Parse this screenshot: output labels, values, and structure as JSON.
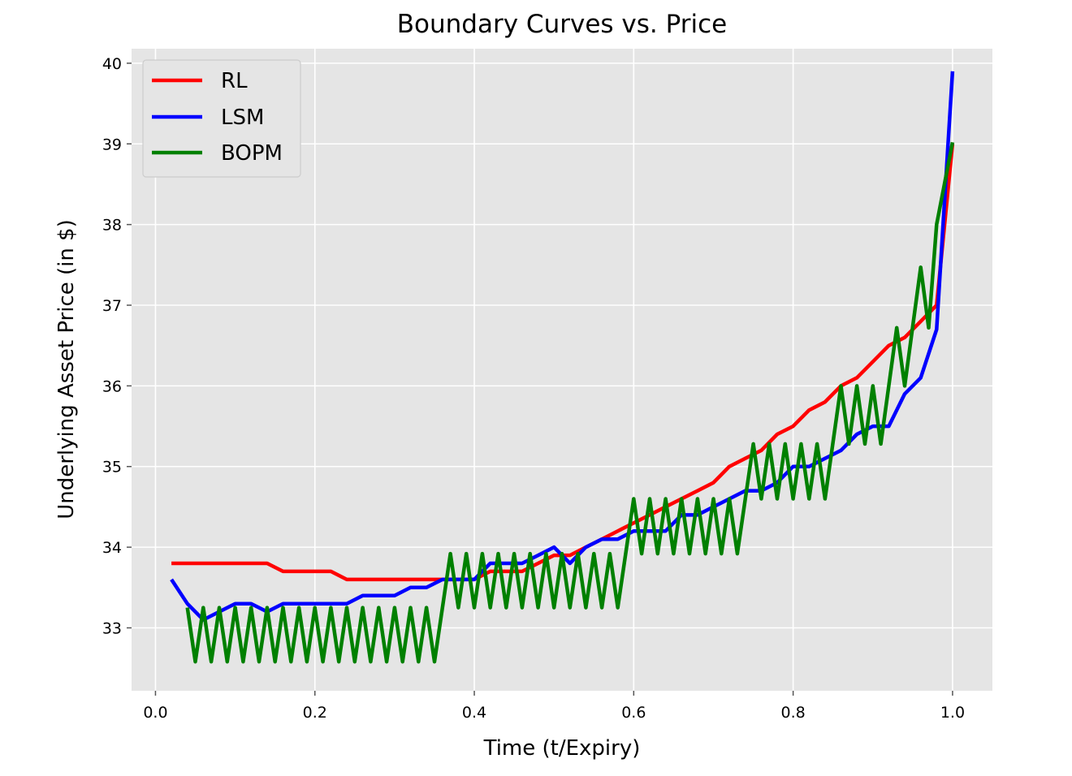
{
  "chart_data": {
    "type": "line",
    "title": "Boundary Curves vs. Price",
    "xlabel": "Time (t/Expiry)",
    "ylabel": "Underlying Asset Price (in $)",
    "xlim": [
      -0.03,
      1.05
    ],
    "ylim": [
      32.22,
      40.18
    ],
    "xticks": [
      0.0,
      0.2,
      0.4,
      0.6,
      0.8,
      1.0
    ],
    "xtick_labels": [
      "0.0",
      "0.2",
      "0.4",
      "0.6",
      "0.8",
      "1.0"
    ],
    "yticks": [
      33,
      34,
      35,
      36,
      37,
      38,
      39,
      40
    ],
    "ytick_labels": [
      "33",
      "34",
      "35",
      "36",
      "37",
      "38",
      "39",
      "40"
    ],
    "grid": true,
    "legend_position": "top-left",
    "series": [
      {
        "name": "RL",
        "color": "#ff0000",
        "x": [
          0.02,
          0.04,
          0.06,
          0.08,
          0.1,
          0.12,
          0.14,
          0.16,
          0.18,
          0.2,
          0.22,
          0.24,
          0.26,
          0.28,
          0.3,
          0.32,
          0.34,
          0.36,
          0.38,
          0.4,
          0.42,
          0.44,
          0.46,
          0.48,
          0.5,
          0.52,
          0.54,
          0.56,
          0.58,
          0.6,
          0.62,
          0.64,
          0.66,
          0.68,
          0.7,
          0.72,
          0.74,
          0.76,
          0.78,
          0.8,
          0.82,
          0.84,
          0.86,
          0.88,
          0.9,
          0.92,
          0.94,
          0.96,
          0.98,
          1.0
        ],
        "y": [
          33.8,
          33.8,
          33.8,
          33.8,
          33.8,
          33.8,
          33.8,
          33.7,
          33.7,
          33.7,
          33.7,
          33.6,
          33.6,
          33.6,
          33.6,
          33.6,
          33.6,
          33.6,
          33.6,
          33.6,
          33.7,
          33.7,
          33.7,
          33.8,
          33.9,
          33.9,
          34.0,
          34.1,
          34.2,
          34.3,
          34.4,
          34.5,
          34.6,
          34.7,
          34.8,
          35.0,
          35.1,
          35.2,
          35.4,
          35.5,
          35.7,
          35.8,
          36.0,
          36.1,
          36.3,
          36.5,
          36.6,
          36.8,
          37.0,
          39.0
        ]
      },
      {
        "name": "LSM",
        "color": "#0000ff",
        "x": [
          0.02,
          0.04,
          0.06,
          0.08,
          0.1,
          0.12,
          0.14,
          0.16,
          0.18,
          0.2,
          0.22,
          0.24,
          0.26,
          0.28,
          0.3,
          0.32,
          0.34,
          0.36,
          0.38,
          0.4,
          0.42,
          0.44,
          0.46,
          0.48,
          0.5,
          0.52,
          0.54,
          0.56,
          0.58,
          0.6,
          0.62,
          0.64,
          0.66,
          0.68,
          0.7,
          0.72,
          0.74,
          0.76,
          0.78,
          0.8,
          0.82,
          0.84,
          0.86,
          0.88,
          0.9,
          0.92,
          0.94,
          0.96,
          0.98,
          1.0
        ],
        "y": [
          33.6,
          33.3,
          33.1,
          33.2,
          33.3,
          33.3,
          33.2,
          33.3,
          33.3,
          33.3,
          33.3,
          33.3,
          33.4,
          33.4,
          33.4,
          33.5,
          33.5,
          33.6,
          33.6,
          33.6,
          33.8,
          33.8,
          33.8,
          33.9,
          34.0,
          33.8,
          34.0,
          34.1,
          34.1,
          34.2,
          34.2,
          34.2,
          34.4,
          34.4,
          34.5,
          34.6,
          34.7,
          34.7,
          34.8,
          35.0,
          35.0,
          35.1,
          35.2,
          35.4,
          35.5,
          35.5,
          35.9,
          36.1,
          36.7,
          39.9
        ]
      },
      {
        "name": "BOPM",
        "color": "#008000",
        "x": [
          0.04,
          0.05,
          0.06,
          0.07,
          0.08,
          0.09,
          0.1,
          0.11,
          0.12,
          0.13,
          0.14,
          0.15,
          0.16,
          0.17,
          0.18,
          0.19,
          0.2,
          0.21,
          0.22,
          0.23,
          0.24,
          0.25,
          0.26,
          0.27,
          0.28,
          0.29,
          0.3,
          0.31,
          0.32,
          0.33,
          0.34,
          0.35,
          0.37,
          0.38,
          0.39,
          0.4,
          0.41,
          0.42,
          0.43,
          0.44,
          0.45,
          0.46,
          0.47,
          0.48,
          0.49,
          0.5,
          0.51,
          0.52,
          0.53,
          0.54,
          0.55,
          0.56,
          0.57,
          0.58,
          0.6,
          0.61,
          0.62,
          0.63,
          0.64,
          0.65,
          0.66,
          0.67,
          0.68,
          0.69,
          0.7,
          0.71,
          0.72,
          0.73,
          0.75,
          0.76,
          0.77,
          0.78,
          0.79,
          0.8,
          0.81,
          0.82,
          0.83,
          0.84,
          0.86,
          0.87,
          0.88,
          0.89,
          0.9,
          0.91,
          0.93,
          0.94,
          0.96,
          0.97,
          0.98,
          1.0
        ],
        "y": [
          33.25,
          32.58,
          33.25,
          32.58,
          33.25,
          32.58,
          33.25,
          32.58,
          33.25,
          32.58,
          33.25,
          32.58,
          33.25,
          32.58,
          33.25,
          32.58,
          33.25,
          32.58,
          33.25,
          32.58,
          33.25,
          32.58,
          33.25,
          32.58,
          33.25,
          32.58,
          33.25,
          32.58,
          33.25,
          32.58,
          33.25,
          32.58,
          33.92,
          33.25,
          33.92,
          33.25,
          33.92,
          33.25,
          33.92,
          33.25,
          33.92,
          33.25,
          33.92,
          33.25,
          33.92,
          33.25,
          33.92,
          33.25,
          33.92,
          33.25,
          33.92,
          33.25,
          33.92,
          33.25,
          34.6,
          33.92,
          34.6,
          33.92,
          34.6,
          33.92,
          34.6,
          33.92,
          34.6,
          33.92,
          34.6,
          33.92,
          34.6,
          33.92,
          35.28,
          34.6,
          35.28,
          34.6,
          35.28,
          34.6,
          35.28,
          34.6,
          35.28,
          34.6,
          36.0,
          35.28,
          36.0,
          35.28,
          36.0,
          35.28,
          36.72,
          36.0,
          37.47,
          36.72,
          38.0,
          39.02
        ]
      }
    ]
  }
}
